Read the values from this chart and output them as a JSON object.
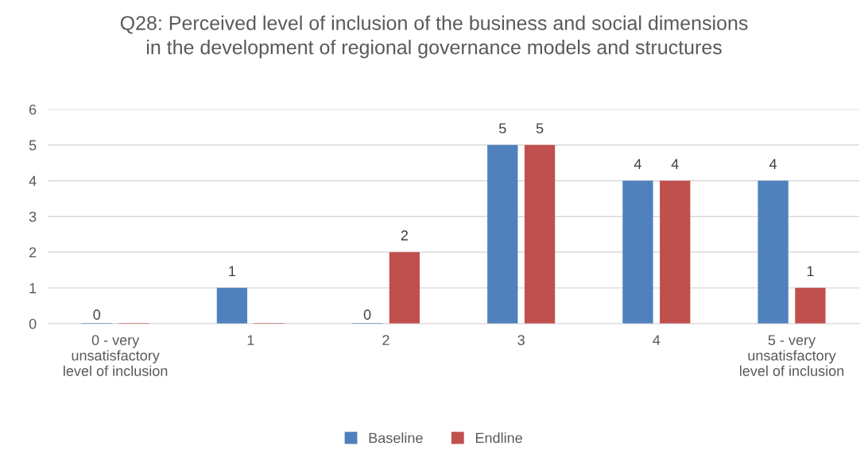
{
  "chart_data": {
    "type": "bar",
    "title": "Q28: Perceived level of inclusion of the business and social dimensions\nin the development of regional governance models and structures",
    "categories": [
      "0 - very\nunsatisfactory\nlevel of inclusion",
      "1",
      "2",
      "3",
      "4",
      "5 - very\nunsatisfactory\nlevel of inclusion"
    ],
    "series": [
      {
        "name": "Baseline",
        "color": "#4f81bd",
        "values": [
          0,
          1,
          0,
          5,
          4,
          4
        ],
        "value_labels": [
          "0",
          "1",
          "0",
          "5",
          "4",
          "4"
        ]
      },
      {
        "name": "Endline",
        "color": "#c0504d",
        "values": [
          0,
          0,
          2,
          5,
          4,
          1
        ],
        "value_labels": [
          null,
          null,
          "2",
          "5",
          "4",
          "1"
        ]
      }
    ],
    "ylim": [
      0,
      6
    ],
    "yticks": [
      0,
      1,
      2,
      3,
      4,
      5,
      6
    ],
    "grid": "y",
    "legend": "bottom"
  }
}
